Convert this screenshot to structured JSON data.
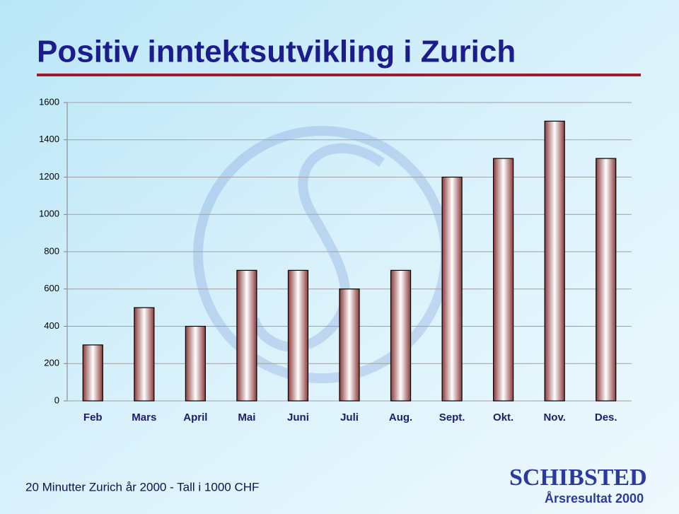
{
  "chart_data": {
    "type": "bar",
    "title": "Positiv inntektsutvikling i Zurich",
    "categories": [
      "Feb",
      "Mars",
      "April",
      "Mai",
      "Juni",
      "Juli",
      "Aug.",
      "Sept.",
      "Okt.",
      "Nov.",
      "Des."
    ],
    "values": [
      300,
      500,
      400,
      700,
      700,
      600,
      700,
      1200,
      1300,
      1500,
      1300
    ],
    "color": "#8b3a3a",
    "ylim": [
      0,
      1600
    ],
    "yticks": [
      0,
      200,
      400,
      600,
      800,
      1000,
      1200,
      1400,
      1600
    ],
    "grid": true
  },
  "footer": "20 Minutter Zurich år 2000 - Tall i 1000 CHF",
  "logo": {
    "name": "SCHIBSTED",
    "subtitle": "Årsresultat 2000"
  }
}
